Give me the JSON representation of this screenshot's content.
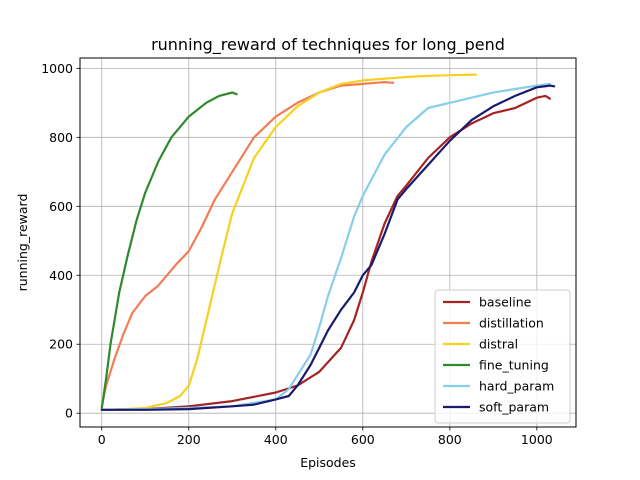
{
  "chart_data": {
    "type": "line",
    "title": "running_reward of techniques for long_pend",
    "xlabel": "Episodes",
    "ylabel": "running_reward",
    "xlim": [
      -50,
      1090
    ],
    "ylim": [
      -40,
      1030
    ],
    "xticks": [
      0,
      200,
      400,
      600,
      800,
      1000
    ],
    "yticks": [
      0,
      200,
      400,
      600,
      800,
      1000
    ],
    "grid": true,
    "legend_position": "lower-right",
    "series": [
      {
        "name": "baseline",
        "color": "#a32424",
        "x": [
          0,
          100,
          200,
          300,
          400,
          450,
          500,
          550,
          580,
          600,
          620,
          650,
          680,
          700,
          750,
          800,
          850,
          900,
          950,
          1000,
          1020,
          1030
        ],
        "y": [
          10,
          12,
          20,
          35,
          60,
          80,
          120,
          190,
          270,
          350,
          440,
          550,
          630,
          660,
          740,
          800,
          840,
          870,
          885,
          915,
          920,
          912
        ]
      },
      {
        "name": "distillation",
        "color": "#f47c55",
        "x": [
          0,
          10,
          30,
          50,
          70,
          100,
          130,
          150,
          170,
          200,
          230,
          260,
          300,
          350,
          400,
          450,
          500,
          550,
          600,
          650,
          670
        ],
        "y": [
          20,
          80,
          160,
          230,
          290,
          340,
          370,
          400,
          430,
          470,
          540,
          620,
          700,
          800,
          860,
          900,
          930,
          950,
          955,
          960,
          958
        ]
      },
      {
        "name": "distral",
        "color": "#f7d11f",
        "x": [
          0,
          50,
          100,
          150,
          180,
          200,
          220,
          250,
          280,
          300,
          350,
          400,
          450,
          500,
          550,
          600,
          650,
          700,
          750,
          800,
          860
        ],
        "y": [
          10,
          12,
          15,
          30,
          50,
          80,
          160,
          320,
          480,
          580,
          740,
          830,
          890,
          930,
          955,
          965,
          970,
          975,
          978,
          980,
          982
        ]
      },
      {
        "name": "fine_tuning",
        "color": "#2d8a2d",
        "x": [
          0,
          10,
          20,
          40,
          60,
          80,
          100,
          130,
          160,
          200,
          240,
          270,
          300,
          310
        ],
        "y": [
          15,
          100,
          200,
          350,
          460,
          560,
          640,
          730,
          800,
          860,
          900,
          920,
          930,
          925
        ]
      },
      {
        "name": "hard_param",
        "color": "#87ceeb",
        "x": [
          0,
          100,
          200,
          300,
          400,
          430,
          450,
          480,
          500,
          520,
          550,
          580,
          600,
          650,
          700,
          750,
          800,
          850,
          900,
          950,
          1000,
          1030
        ],
        "y": [
          10,
          12,
          15,
          20,
          40,
          70,
          110,
          170,
          250,
          340,
          450,
          570,
          630,
          750,
          830,
          885,
          900,
          915,
          930,
          940,
          950,
          955
        ]
      },
      {
        "name": "soft_param",
        "color": "#1a1a6e",
        "x": [
          0,
          100,
          200,
          300,
          350,
          400,
          430,
          450,
          480,
          500,
          520,
          550,
          580,
          600,
          620,
          650,
          680,
          700,
          750,
          800,
          850,
          900,
          950,
          1000,
          1030,
          1040
        ],
        "y": [
          10,
          10,
          12,
          20,
          25,
          40,
          50,
          80,
          140,
          190,
          240,
          300,
          350,
          400,
          430,
          520,
          620,
          650,
          720,
          790,
          850,
          890,
          920,
          945,
          950,
          948
        ]
      }
    ]
  }
}
